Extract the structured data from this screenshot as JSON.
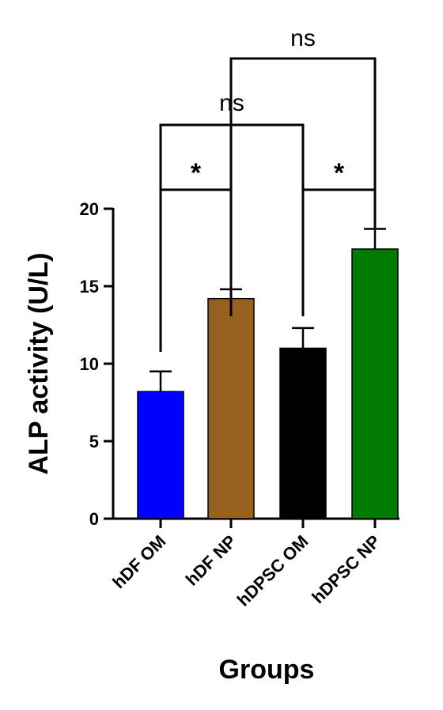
{
  "chart_data": {
    "type": "bar",
    "categories": [
      "hDF OM",
      "hDF NP",
      "hDPSC OM",
      "hDPSC NP"
    ],
    "values": [
      8.2,
      14.2,
      11.0,
      17.4
    ],
    "errors": [
      1.3,
      0.6,
      1.3,
      1.3
    ],
    "colors": [
      "#0000ff",
      "#976220",
      "#000000",
      "#007a00"
    ],
    "xlabel": "Groups",
    "ylabel": "ALP activity (U/L)",
    "ylim": [
      0,
      20
    ],
    "yticks": [
      0,
      5,
      10,
      15,
      20
    ],
    "grid": false,
    "comparisons": [
      {
        "from": "hDF OM",
        "to": "hDF NP",
        "label": "*"
      },
      {
        "from": "hDPSC OM",
        "to": "hDPSC NP",
        "label": "*"
      },
      {
        "from": "hDF OM",
        "to": "hDPSC OM",
        "label": "ns"
      },
      {
        "from": "hDF NP",
        "to": "hDPSC NP",
        "label": "ns"
      }
    ]
  }
}
